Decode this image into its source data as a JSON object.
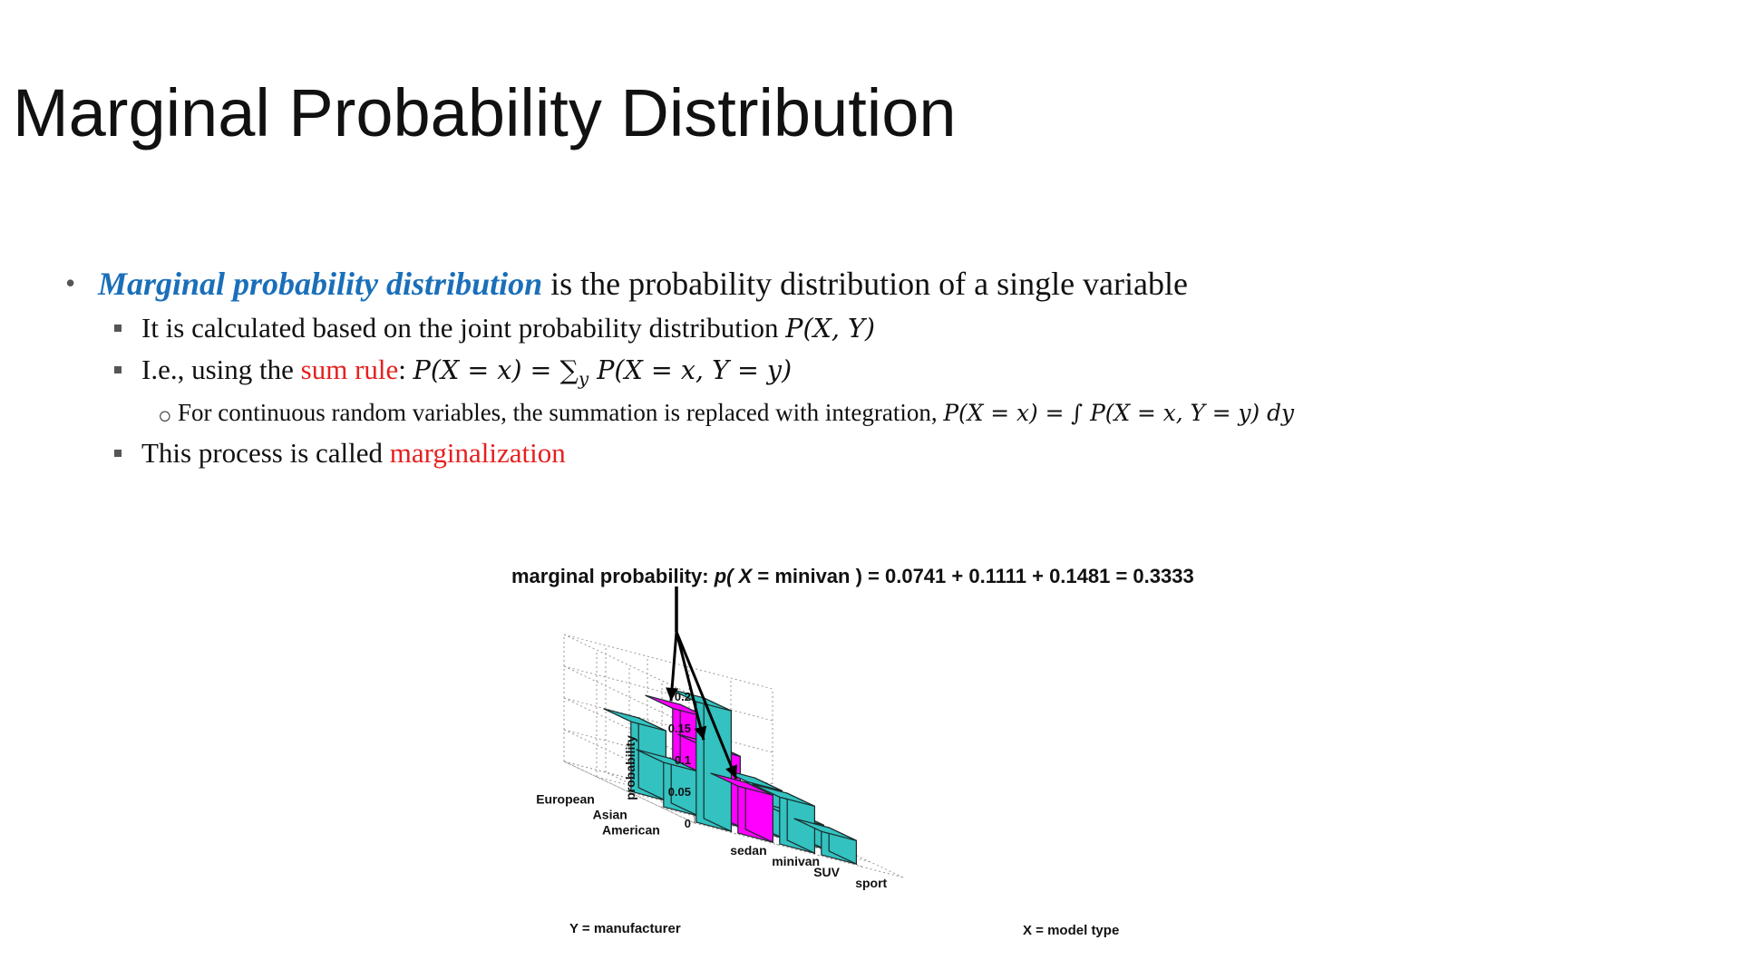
{
  "slide": {
    "title": "Marginal Probability Distribution"
  },
  "bullets": {
    "b1": {
      "term": "Marginal probability distribution",
      "rest": " is the probability distribution of a single variable"
    },
    "b2a": {
      "text": "It is calculated based on the joint probability distribution ",
      "math": "P(X, Y)"
    },
    "b2b": {
      "prefix": "I.e., using the ",
      "red": "sum rule",
      "suffix": ": ",
      "math_left": "P(X = x) = ",
      "sum": "∑",
      "sub": "y",
      "math_right": " P(X = x, Y = y)"
    },
    "b3": {
      "text": "For continuous random variables, the summation is replaced with integration, ",
      "math": "P(X = x) = ∫ P(X = x, Y = y) dy"
    },
    "b2c": {
      "prefix": "This process is called ",
      "red": "marginalization"
    }
  },
  "figure": {
    "title_prefix": "marginal probability: ",
    "title_p": "p( X",
    "title_rest": " = minivan ) = 0.0741 + 0.1111 + 0.1481 = 0.3333",
    "zlabel": "probability",
    "xlabel": "X = model type",
    "ylabel": "Y = manufacturer",
    "z_ticks": [
      "0.2",
      "0.15",
      "0.1",
      "0.05",
      "0"
    ],
    "x_categories": [
      "sedan",
      "minivan",
      "SUV",
      "sport"
    ],
    "y_categories": [
      "American",
      "Asian",
      "European"
    ],
    "colors": {
      "bar": "#33c2c0",
      "highlight": "#ff00ff",
      "edge": "#1a2a2a"
    }
  },
  "chart_data": {
    "type": "bar3d",
    "title": "marginal probability: p( X = minivan ) = 0.0741 + 0.1111 + 0.1481 = 0.3333",
    "xlabel": "X = model type",
    "ylabel": "Y = manufacturer",
    "zlabel": "probability",
    "x_categories": [
      "sedan",
      "minivan",
      "SUV",
      "sport"
    ],
    "y_categories": [
      "American",
      "Asian",
      "European"
    ],
    "zlim": [
      0,
      0.2
    ],
    "grid": true,
    "highlight_x": "minivan",
    "values": {
      "American": [
        0.19,
        0.0741,
        0.074,
        0.037
      ],
      "Asian": [
        0.07,
        0.1111,
        0.074,
        0.037
      ],
      "European": [
        0.11,
        0.1481,
        0.037,
        0.037
      ]
    }
  }
}
